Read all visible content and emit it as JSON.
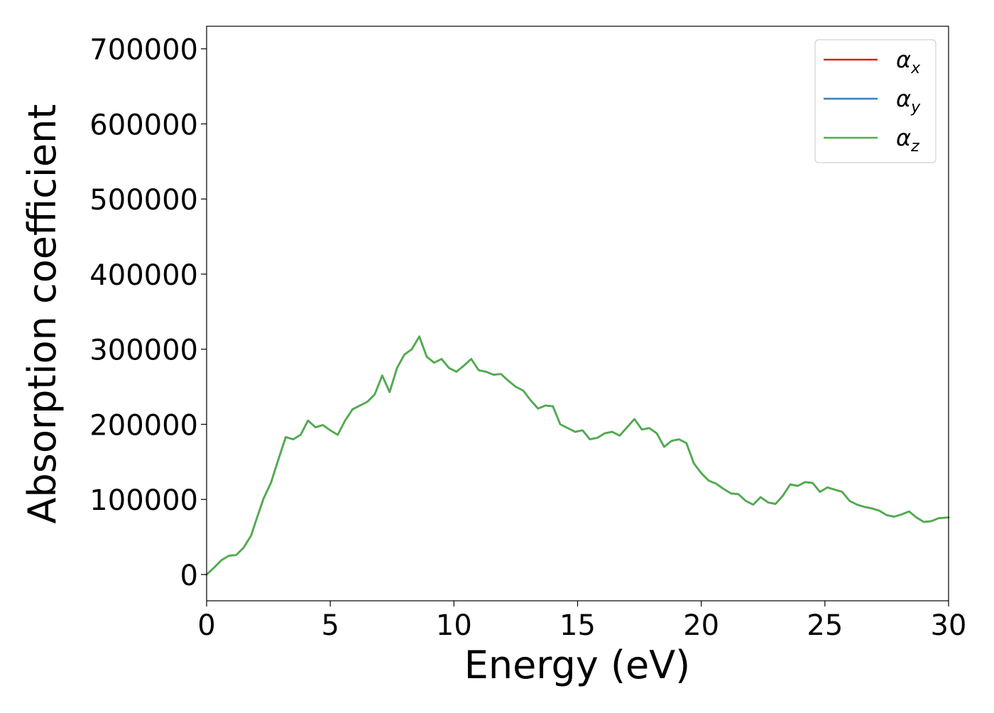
{
  "chart_data": {
    "type": "line",
    "title": "",
    "xlabel": "Energy (eV)",
    "ylabel": "Absorption coefficient",
    "xlim": [
      0,
      30
    ],
    "ylim": [
      -35000,
      730000
    ],
    "xticks": [
      0,
      5,
      10,
      15,
      20,
      25,
      30
    ],
    "xtick_labels": [
      "0",
      "5",
      "10",
      "15",
      "20",
      "25",
      "30"
    ],
    "yticks": [
      0,
      100000,
      200000,
      300000,
      400000,
      500000,
      600000,
      700000
    ],
    "ytick_labels": [
      "0",
      "100000",
      "200000",
      "300000",
      "400000",
      "500000",
      "600000",
      "700000"
    ],
    "grid": false,
    "legend_position": "top-right",
    "x": [
      0,
      0.3,
      0.6,
      0.9,
      1.2,
      1.5,
      1.8,
      2.0,
      2.3,
      2.6,
      2.9,
      3.2,
      3.5,
      3.8,
      4.1,
      4.4,
      4.7,
      5.0,
      5.3,
      5.6,
      5.9,
      6.2,
      6.5,
      6.8,
      7.1,
      7.4,
      7.7,
      8.0,
      8.3,
      8.6,
      8.9,
      9.2,
      9.5,
      9.8,
      10.1,
      10.4,
      10.7,
      11.0,
      11.3,
      11.6,
      11.9,
      12.2,
      12.5,
      12.8,
      13.1,
      13.4,
      13.7,
      14.0,
      14.3,
      14.6,
      14.9,
      15.2,
      15.5,
      15.8,
      16.1,
      16.4,
      16.7,
      17.0,
      17.3,
      17.6,
      17.9,
      18.2,
      18.5,
      18.8,
      19.1,
      19.4,
      19.7,
      20.0,
      20.3,
      20.6,
      20.9,
      21.2,
      21.5,
      21.8,
      22.1,
      22.4,
      22.7,
      23.0,
      23.3,
      23.6,
      23.9,
      24.2,
      24.5,
      24.8,
      25.1,
      25.4,
      25.7,
      26.0,
      26.3,
      26.6,
      26.9,
      27.2,
      27.5,
      27.8,
      28.1,
      28.4,
      28.7,
      29.0,
      29.3,
      29.6,
      30.0
    ],
    "series": [
      {
        "name": "α_x",
        "label_main": "α",
        "label_sub": "x",
        "color": "#e41a1c",
        "values": [
          0,
          9000,
          19000,
          25000,
          26000,
          36000,
          52000,
          72000,
          101000,
          122000,
          153000,
          183000,
          180000,
          186000,
          205000,
          196000,
          199000,
          192000,
          186000,
          205000,
          220000,
          225000,
          230000,
          240000,
          265000,
          243000,
          275000,
          293000,
          300000,
          317000,
          290000,
          282000,
          287000,
          275000,
          270000,
          278000,
          287000,
          272000,
          270000,
          266000,
          267000,
          258000,
          250000,
          245000,
          232000,
          221000,
          225000,
          224000,
          200000,
          195000,
          190000,
          192000,
          180000,
          182000,
          188000,
          190000,
          185000,
          196000,
          207000,
          193000,
          195000,
          188000,
          170000,
          178000,
          180000,
          175000,
          148000,
          135000,
          125000,
          121000,
          114000,
          108000,
          107000,
          98000,
          93000,
          103000,
          96000,
          94000,
          105000,
          120000,
          118000,
          123000,
          122000,
          110000,
          116000,
          113000,
          110000,
          98000,
          93000,
          90000,
          88000,
          85000,
          79000,
          77000,
          80000,
          84000,
          76000,
          70000,
          71000,
          75000,
          76000
        ]
      },
      {
        "name": "α_y",
        "label_main": "α",
        "label_sub": "y",
        "color": "#377eb8",
        "values": [
          0,
          9000,
          19000,
          25000,
          26000,
          36000,
          52000,
          72000,
          101000,
          122000,
          153000,
          183000,
          180000,
          186000,
          205000,
          196000,
          199000,
          192000,
          186000,
          205000,
          220000,
          225000,
          230000,
          240000,
          265000,
          243000,
          275000,
          293000,
          300000,
          317000,
          290000,
          282000,
          287000,
          275000,
          270000,
          278000,
          287000,
          272000,
          270000,
          266000,
          267000,
          258000,
          250000,
          245000,
          232000,
          221000,
          225000,
          224000,
          200000,
          195000,
          190000,
          192000,
          180000,
          182000,
          188000,
          190000,
          185000,
          196000,
          207000,
          193000,
          195000,
          188000,
          170000,
          178000,
          180000,
          175000,
          148000,
          135000,
          125000,
          121000,
          114000,
          108000,
          107000,
          98000,
          93000,
          103000,
          96000,
          94000,
          105000,
          120000,
          118000,
          123000,
          122000,
          110000,
          116000,
          113000,
          110000,
          98000,
          93000,
          90000,
          88000,
          85000,
          79000,
          77000,
          80000,
          84000,
          76000,
          70000,
          71000,
          75000,
          76000
        ]
      },
      {
        "name": "α_z",
        "label_main": "α",
        "label_sub": "z",
        "color": "#4daf4a",
        "values": [
          0,
          9000,
          19000,
          25000,
          26000,
          36000,
          52000,
          72000,
          101000,
          122000,
          153000,
          183000,
          180000,
          186000,
          205000,
          196000,
          199000,
          192000,
          186000,
          205000,
          220000,
          225000,
          230000,
          240000,
          265000,
          243000,
          275000,
          293000,
          300000,
          317000,
          290000,
          282000,
          287000,
          275000,
          270000,
          278000,
          287000,
          272000,
          270000,
          266000,
          267000,
          258000,
          250000,
          245000,
          232000,
          221000,
          225000,
          224000,
          200000,
          195000,
          190000,
          192000,
          180000,
          182000,
          188000,
          190000,
          185000,
          196000,
          207000,
          193000,
          195000,
          188000,
          170000,
          178000,
          180000,
          175000,
          148000,
          135000,
          125000,
          121000,
          114000,
          108000,
          107000,
          98000,
          93000,
          103000,
          96000,
          94000,
          105000,
          120000,
          118000,
          123000,
          122000,
          110000,
          116000,
          113000,
          110000,
          98000,
          93000,
          90000,
          88000,
          85000,
          79000,
          77000,
          80000,
          84000,
          76000,
          70000,
          71000,
          75000,
          76000
        ]
      }
    ]
  }
}
